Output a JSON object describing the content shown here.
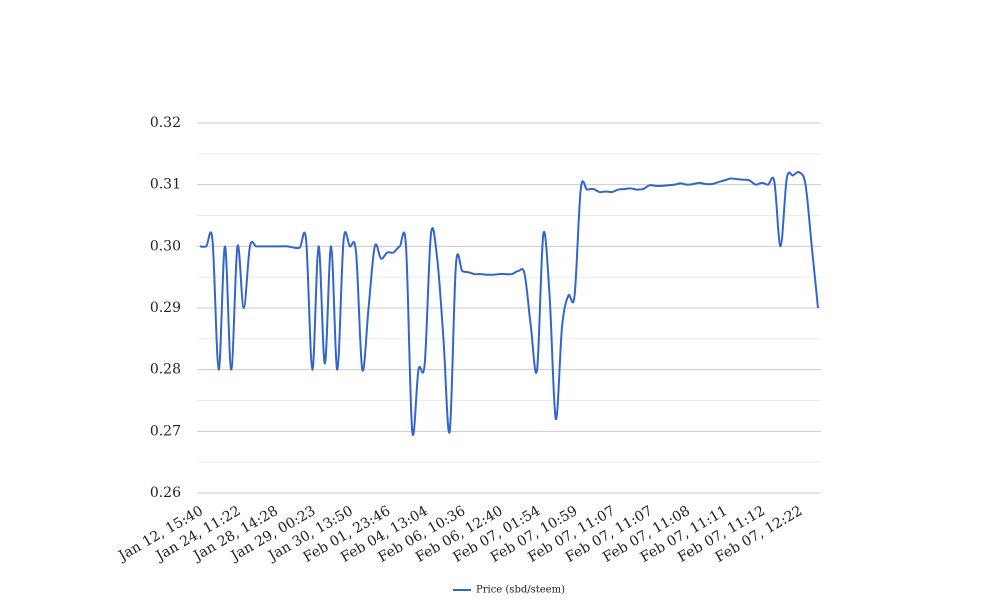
{
  "chart_data": {
    "type": "line",
    "categories": [
      "Jan 12, 15:40",
      null,
      null,
      null,
      null,
      null,
      "Jan 24, 11:22",
      null,
      null,
      null,
      null,
      null,
      "Jan 28, 14:28",
      null,
      null,
      null,
      null,
      null,
      "Jan 29, 00:23",
      null,
      null,
      null,
      null,
      null,
      "Jan 30, 13:50",
      null,
      null,
      null,
      null,
      null,
      "Feb 01, 23:46",
      null,
      null,
      null,
      null,
      null,
      "Feb 04, 13:04",
      null,
      null,
      null,
      null,
      null,
      "Feb 06, 10:36",
      null,
      null,
      null,
      null,
      null,
      "Feb 06, 12:40",
      null,
      null,
      null,
      null,
      null,
      "Feb 07, 01:54",
      null,
      null,
      null,
      null,
      null,
      "Feb 07, 10:59",
      null,
      null,
      null,
      null,
      null,
      "Feb 07, 11:07",
      null,
      null,
      null,
      null,
      null,
      "Feb 07, 11:07",
      null,
      null,
      null,
      null,
      null,
      "Feb 07, 11:08",
      null,
      null,
      null,
      null,
      null,
      "Feb 07, 11:11",
      null,
      null,
      null,
      null,
      null,
      "Feb 07, 11:12",
      null,
      null,
      null,
      null,
      null,
      "Feb 07, 12:22",
      null,
      null,
      null
    ],
    "series": [
      {
        "name": "Price (sbd/steem)",
        "color": "#3366cc",
        "values": [
          0.3,
          0.3,
          0.301,
          0.28,
          0.3,
          0.28,
          0.3,
          0.29,
          0.3,
          0.3,
          0.3,
          0.3,
          0.3,
          0.3,
          0.3,
          0.2998,
          0.2998,
          0.301,
          0.28,
          0.3,
          0.281,
          0.3,
          0.28,
          0.301,
          0.3,
          0.299,
          0.28,
          0.29,
          0.3,
          0.298,
          0.299,
          0.299,
          0.3,
          0.3,
          0.27,
          0.28,
          0.281,
          0.302,
          0.298,
          0.285,
          0.27,
          0.297,
          0.296,
          0.2958,
          0.2955,
          0.2955,
          0.2954,
          0.2954,
          0.2955,
          0.2955,
          0.2955,
          0.296,
          0.2955,
          0.287,
          0.28,
          0.302,
          0.292,
          0.272,
          0.287,
          0.292,
          0.292,
          0.3093,
          0.3092,
          0.3093,
          0.3088,
          0.3089,
          0.3088,
          0.3092,
          0.3093,
          0.3094,
          0.3092,
          0.3093,
          0.3099,
          0.3098,
          0.3098,
          0.3099,
          0.31,
          0.3102,
          0.31,
          0.3101,
          0.3103,
          0.3101,
          0.3101,
          0.3104,
          0.3107,
          0.311,
          0.3109,
          0.3108,
          0.3107,
          0.31,
          0.3103,
          0.31,
          0.3105,
          0.3,
          0.311,
          0.3115,
          0.312,
          0.31,
          0.3,
          0.29
        ]
      }
    ],
    "ylim": [
      0.26,
      0.32
    ],
    "yticks": [
      0.26,
      0.27,
      0.28,
      0.29,
      {
        "value": 0.3,
        "label": "0.30"
      },
      0.31,
      0.32
    ],
    "yminor_ticks": [
      0.265,
      0.275,
      0.285,
      0.295,
      0.305,
      0.315
    ],
    "grid": true,
    "smooth": true,
    "legend": "bottom"
  }
}
